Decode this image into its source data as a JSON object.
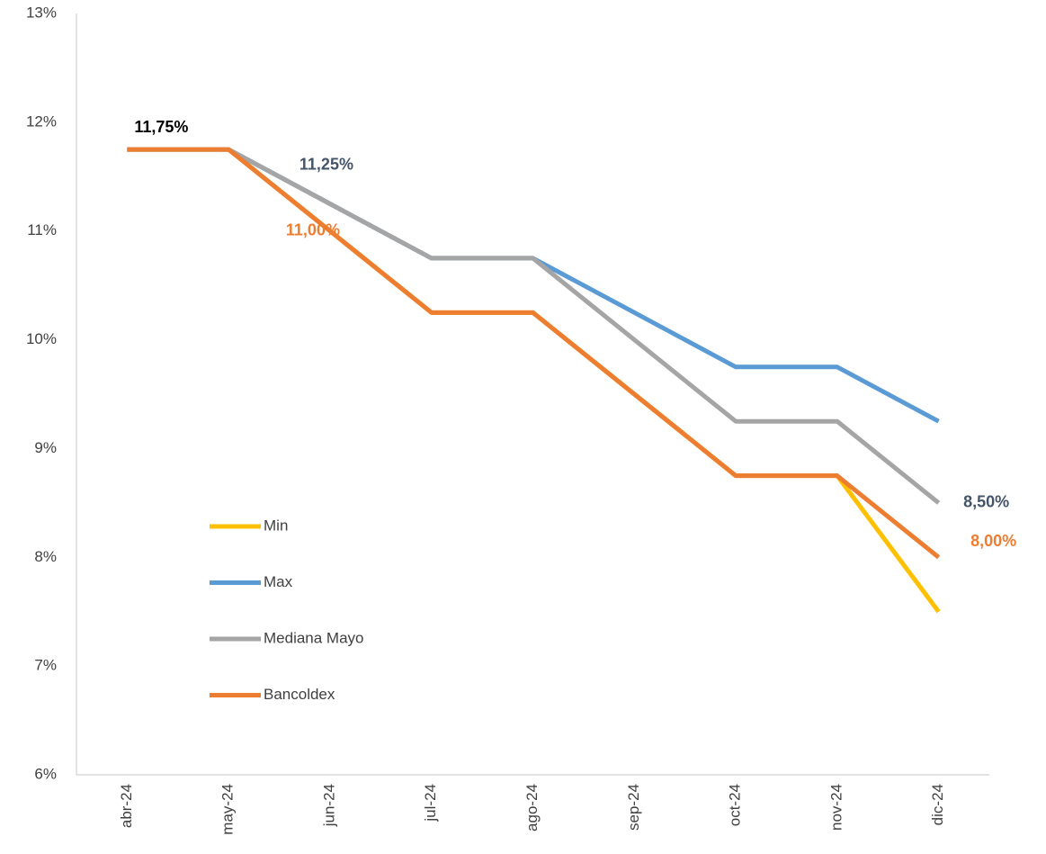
{
  "chart_data": {
    "type": "line",
    "categories": [
      "abr-24",
      "may-24",
      "jun-24",
      "jul-24",
      "ago-24",
      "sep-24",
      "oct-24",
      "nov-24",
      "dic-24"
    ],
    "series": [
      {
        "name": "Min",
        "color": "#ffc000",
        "values": [
          11.75,
          11.75,
          11.0,
          10.25,
          10.25,
          9.5,
          8.75,
          8.75,
          7.5
        ],
        "value_labels": [
          "11,75%",
          null,
          null,
          null,
          null,
          null,
          null,
          null,
          null
        ],
        "label_color": "#000000"
      },
      {
        "name": "Max",
        "color": "#5b9bd5",
        "values": [
          11.75,
          11.75,
          11.25,
          10.75,
          10.75,
          10.25,
          9.75,
          9.75,
          9.25
        ]
      },
      {
        "name": "Mediana Mayo",
        "color": "#a5a5a5",
        "values": [
          11.75,
          11.75,
          11.25,
          10.75,
          10.75,
          10.0,
          9.25,
          9.25,
          8.5
        ],
        "value_labels": [
          null,
          null,
          "11,25%",
          null,
          null,
          null,
          null,
          null,
          "8,50%"
        ],
        "label_color": "#44546a"
      },
      {
        "name": "Bancoldex",
        "color": "#ed7d31",
        "values": [
          11.75,
          11.75,
          11.0,
          10.25,
          10.25,
          9.5,
          8.75,
          8.75,
          8.0
        ],
        "value_labels": [
          null,
          null,
          "11,00%",
          null,
          null,
          null,
          null,
          null,
          "8,00%"
        ],
        "label_color": "#ed7d31"
      }
    ],
    "ylim": [
      6,
      13
    ],
    "yticks": [
      {
        "value": 6,
        "label": "6%"
      },
      {
        "value": 7,
        "label": "7%"
      },
      {
        "value": 8,
        "label": "8%"
      },
      {
        "value": 9,
        "label": "9%"
      },
      {
        "value": 10,
        "label": "10%"
      },
      {
        "value": 11,
        "label": "11%"
      },
      {
        "value": 12,
        "label": "12%"
      },
      {
        "value": 13,
        "label": "13%"
      }
    ],
    "grid": false
  }
}
